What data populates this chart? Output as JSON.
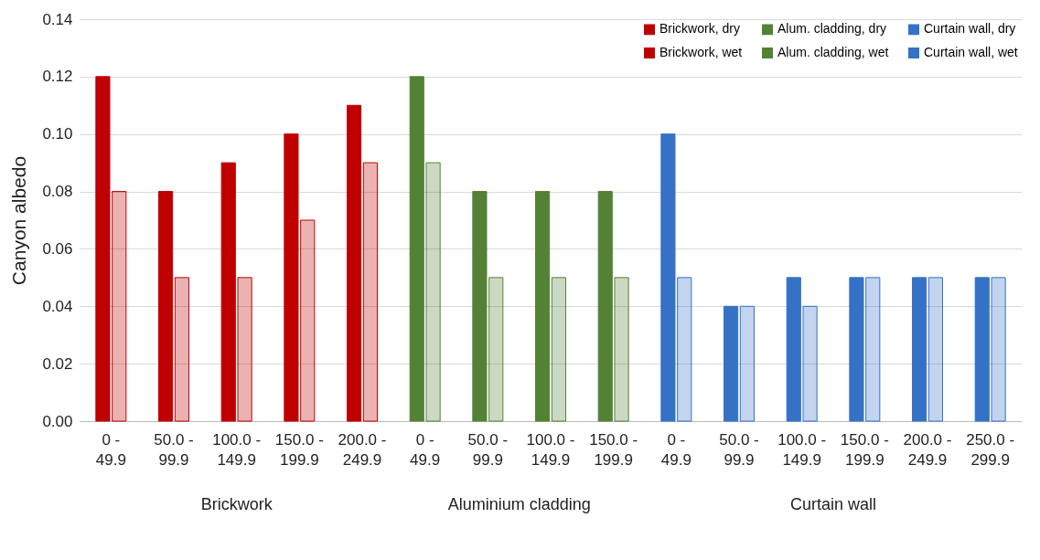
{
  "chart_data": {
    "type": "bar",
    "ylabel": "Canyon albedo",
    "categories": [
      "0 - 49.9",
      "50.0 - 99.9",
      "100.0 - 149.9",
      "150.0 - 199.9",
      "200.0 - 249.9",
      "0 - 49.9",
      "50.0 - 99.9",
      "100.0 - 149.9",
      "150.0 - 199.9",
      "0 - 49.9",
      "50.0 - 99.9",
      "100.0 - 149.9",
      "150.0 - 199.9",
      "200.0 - 249.9",
      "250.0 - 299.9"
    ],
    "series": [
      {
        "name": "Brickwork, dry",
        "color": "#c00000",
        "values": [
          0.12,
          0.08,
          0.09,
          0.1,
          0.11,
          null,
          null,
          null,
          null,
          null,
          null,
          null,
          null,
          null,
          null
        ]
      },
      {
        "name": "Brickwork, wet",
        "color": "#c00000",
        "values": [
          0.08,
          0.05,
          0.05,
          0.07,
          0.09,
          null,
          null,
          null,
          null,
          null,
          null,
          null,
          null,
          null,
          null
        ]
      },
      {
        "name": "Alum. cladding, dry",
        "color": "#548235",
        "values": [
          null,
          null,
          null,
          null,
          null,
          0.12,
          0.08,
          0.08,
          0.08,
          null,
          null,
          null,
          null,
          null,
          null
        ]
      },
      {
        "name": "Alum. cladding, wet",
        "color": "#548235",
        "values": [
          null,
          null,
          null,
          null,
          null,
          0.09,
          0.05,
          0.05,
          0.05,
          null,
          null,
          null,
          null,
          null,
          null
        ]
      },
      {
        "name": "Curtain wall, dry",
        "color": "#3572c6",
        "values": [
          null,
          null,
          null,
          null,
          null,
          null,
          null,
          null,
          null,
          0.1,
          0.04,
          0.05,
          0.05,
          0.05,
          0.05
        ]
      },
      {
        "name": "Curtain wall, wet",
        "color": "#3572c6",
        "values": [
          null,
          null,
          null,
          null,
          null,
          null,
          null,
          null,
          null,
          0.05,
          0.04,
          0.04,
          0.05,
          0.05,
          0.05
        ]
      }
    ],
    "annotations": [
      "Brickwork",
      "Aluminium cladding",
      "Curtain wall"
    ],
    "ylim": [
      0,
      0.14
    ],
    "yticks": [
      {
        "value": 0,
        "label": "0.00"
      },
      {
        "value": 0.02,
        "label": "0.02"
      },
      {
        "value": 0.04,
        "label": "0.04"
      },
      {
        "value": 0.06,
        "label": "0.06"
      },
      {
        "value": 0.08,
        "label": "0.08"
      },
      {
        "value": 0.1,
        "label": "0.10"
      },
      {
        "value": 0.12,
        "label": "0.12"
      },
      {
        "value": 0.14,
        "label": "0.14"
      }
    ],
    "grid": "y",
    "legend": "top right"
  }
}
